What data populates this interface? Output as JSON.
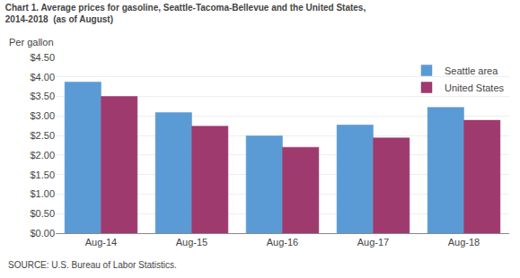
{
  "chart_data": {
    "type": "bar",
    "title": "Chart 1. Average prices for gasoline, Seattle-Tacoma-Bellevue and the United States,\n2014-2018  (as of August)",
    "ylabel": "Per gallon",
    "source": "SOURCE: U.S. Bureau of Labor Statistics.",
    "categories": [
      "Aug-14",
      "Aug-15",
      "Aug-16",
      "Aug-17",
      "Aug-18"
    ],
    "series": [
      {
        "name": "Seattle area",
        "color": "#5B9BD5",
        "values": [
          3.87,
          3.09,
          2.49,
          2.77,
          3.22
        ]
      },
      {
        "name": "United States",
        "color": "#9E3A6E",
        "values": [
          3.5,
          2.74,
          2.2,
          2.44,
          2.89
        ]
      }
    ],
    "ylim": [
      0.0,
      4.5
    ],
    "yticks": [
      {
        "value": 0.0,
        "label": "$0.00"
      },
      {
        "value": 0.5,
        "label": "$0.50"
      },
      {
        "value": 1.0,
        "label": "$1.00"
      },
      {
        "value": 1.5,
        "label": "$1.50"
      },
      {
        "value": 2.0,
        "label": "$2.00"
      },
      {
        "value": 2.5,
        "label": "$2.50"
      },
      {
        "value": 3.0,
        "label": "$3.00"
      },
      {
        "value": 3.5,
        "label": "$3.50"
      },
      {
        "value": 4.0,
        "label": "$4.00"
      },
      {
        "value": 4.5,
        "label": "$4.50"
      }
    ],
    "grid": true,
    "legend": "upper right"
  }
}
